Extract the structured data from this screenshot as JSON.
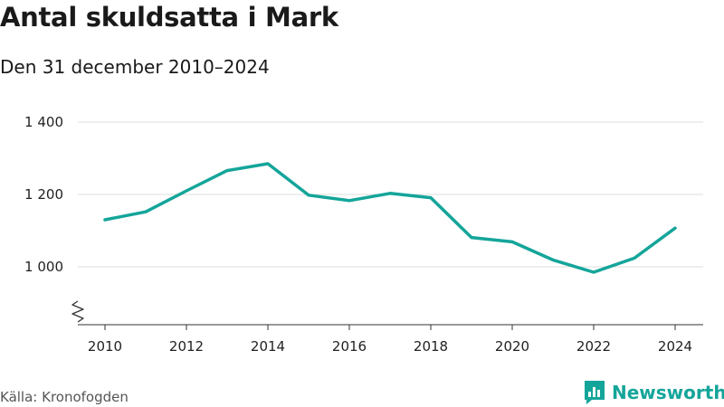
{
  "chart_data": {
    "type": "line",
    "title": "Antal skuldsatta i Mark",
    "subtitle": "Den 31 december 2010–2024",
    "x": [
      2010,
      2011,
      2012,
      2013,
      2014,
      2015,
      2016,
      2017,
      2018,
      2019,
      2020,
      2021,
      2022,
      2023,
      2024
    ],
    "series": [
      {
        "values": [
          1130,
          1152,
          1210,
          1266,
          1285,
          1198,
          1183,
          1203,
          1191,
          1081,
          1069,
          1019,
          985,
          1024,
          1107
        ]
      }
    ],
    "xticks": [
      2010,
      2012,
      2014,
      2016,
      2018,
      2020,
      2022,
      2024
    ],
    "xtick_labels": [
      "2010",
      "2012",
      "2014",
      "2016",
      "2018",
      "2020",
      "2022",
      "2024"
    ],
    "yticks": [
      1000,
      1200,
      1400
    ],
    "ytick_labels": [
      "1 000",
      "1 200",
      "1 400"
    ],
    "xlim": [
      2010,
      2024
    ],
    "ylim": [
      840,
      1400
    ],
    "y_axis_break": true,
    "grid": "horizontal",
    "line_color": "#14a59a"
  },
  "footer": {
    "source": "Källa: Kronofogden",
    "brand": "Newsworthy",
    "brand_color": "#14a59a",
    "brand_icon": "bar-chart-logo-icon"
  }
}
